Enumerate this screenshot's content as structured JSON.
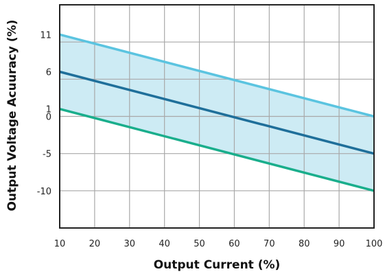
{
  "chart_data": {
    "type": "line",
    "title": "",
    "xlabel": "Output Current (%)",
    "ylabel": "Output Voltage Acuuracy (%)",
    "xlim": [
      10,
      100
    ],
    "ylim": [
      -15,
      15
    ],
    "x_ticks": [
      10,
      20,
      30,
      40,
      50,
      60,
      70,
      80,
      90,
      100
    ],
    "y_ticks": [
      11,
      6,
      1,
      0,
      -5,
      -10
    ],
    "grid": true,
    "legend": "none",
    "series": [
      {
        "x": [
          10,
          100
        ],
        "values": [
          11,
          0
        ],
        "color": "#5bc4e0"
      },
      {
        "x": [
          10,
          100
        ],
        "values": [
          6,
          -5
        ],
        "color": "#1f6f9a"
      },
      {
        "x": [
          10,
          100
        ],
        "values": [
          1,
          -10
        ],
        "color": "#1aae8c"
      }
    ],
    "band": {
      "upper_series": 0,
      "lower_series": 2,
      "color": "#cdebf4"
    },
    "grid_color": "#a8a8a8",
    "frame_color": "#222222"
  }
}
